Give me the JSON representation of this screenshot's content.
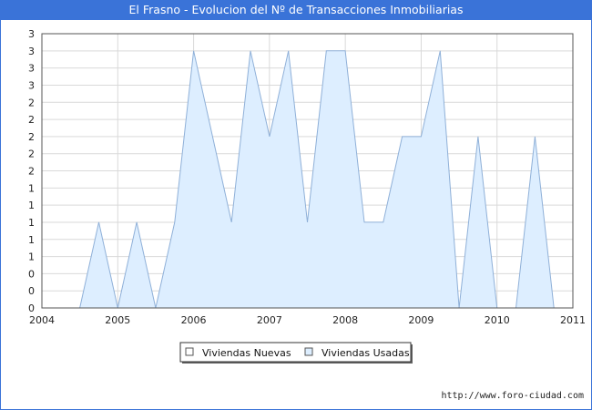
{
  "chart_data": {
    "type": "area",
    "title": "El Frasno - Evolucion del Nº de Transacciones Inmobiliarias",
    "xlabel": "",
    "ylabel": "",
    "xlim": [
      2004,
      2011
    ],
    "ylim": [
      0,
      3.2
    ],
    "x_ticks": [
      "2004",
      "2005",
      "2006",
      "2007",
      "2008",
      "2009",
      "2010",
      "2011"
    ],
    "y_tick_values": [
      0,
      0.2,
      0.4,
      0.6,
      0.8,
      1.0,
      1.2,
      1.4,
      1.6,
      1.8,
      2.0,
      2.2,
      2.4,
      2.6,
      2.8,
      3.0,
      3.2
    ],
    "y_tick_labels": [
      "0",
      "0",
      "0",
      "1",
      "1",
      "1",
      "1",
      "1",
      "2",
      "2",
      "2",
      "2",
      "2",
      "3",
      "3",
      "3",
      "3"
    ],
    "grid": true,
    "legend_position": "bottom",
    "series": [
      {
        "name": "Viviendas Nuevas",
        "color": "#ffffff",
        "x": [
          2004.5,
          2011.0
        ],
        "values": [
          0,
          0
        ]
      },
      {
        "name": "Viviendas Usadas",
        "color": "#ddeeff",
        "line_color": "#8fb0d8",
        "x": [
          2004.5,
          2004.75,
          2005.0,
          2005.25,
          2005.5,
          2005.75,
          2006.0,
          2006.25,
          2006.5,
          2006.75,
          2007.0,
          2007.25,
          2007.5,
          2007.75,
          2008.0,
          2008.25,
          2008.5,
          2008.75,
          2009.0,
          2009.25,
          2009.5,
          2009.75,
          2010.0,
          2010.25,
          2010.5,
          2010.75
        ],
        "values": [
          0,
          1,
          0,
          1,
          0,
          1,
          3,
          2,
          1,
          3,
          2,
          3,
          1,
          3,
          3,
          1,
          1,
          2,
          2,
          3,
          0,
          2,
          0,
          0,
          2,
          0
        ]
      }
    ]
  },
  "footer": {
    "url": "http://www.foro-ciudad.com"
  }
}
